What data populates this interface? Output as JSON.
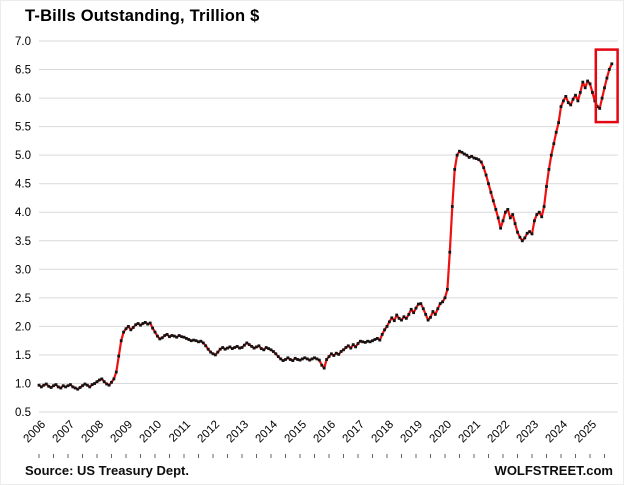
{
  "title": "T-Bills Outstanding, Trillion $",
  "footer": {
    "source": "Source: US Treasury Dept.",
    "brand": "WOLFSTREET.com"
  },
  "chart_data": {
    "type": "line",
    "title": "T-Bills Outstanding, Trillion $",
    "ylabel": "Trillion $",
    "xlabel": "",
    "ylim": [
      0.5,
      7.0
    ],
    "y_tick_step": 0.5,
    "y_tick_labels": [
      "0.5",
      "1.0",
      "1.5",
      "2.0",
      "2.5",
      "3.0",
      "3.5",
      "4.0",
      "4.5",
      "5.0",
      "5.5",
      "6.0",
      "6.5",
      "7.0"
    ],
    "x_tick_labels": [
      "2006",
      "2007",
      "2008",
      "2009",
      "2010",
      "2011",
      "2012",
      "2013",
      "2014",
      "2015",
      "2016",
      "2017",
      "2018",
      "2019",
      "2020",
      "2021",
      "2022",
      "2023",
      "2024",
      "2025"
    ],
    "grid": "horizontal",
    "legend": "none",
    "colors": {
      "line": "#ee1111",
      "marker": "#141414",
      "gridline": "#d9d9d9",
      "tick": "#666666",
      "annotation": "#e30613",
      "text": "#000000"
    },
    "annotation_box": {
      "x0_year": 2025.2,
      "x1_year": 2025.95,
      "y0_value": 5.58,
      "y1_value": 6.85
    },
    "series": [
      {
        "name": "T-Bills Outstanding (Trillion $)",
        "start_year": 2006,
        "points_per_year": 12,
        "values": [
          0.97,
          0.94,
          0.97,
          0.99,
          0.95,
          0.93,
          0.96,
          0.98,
          0.94,
          0.92,
          0.96,
          0.94,
          0.96,
          0.98,
          0.94,
          0.92,
          0.9,
          0.93,
          0.96,
          0.99,
          0.97,
          0.94,
          0.98,
          1.0,
          1.03,
          1.06,
          1.08,
          1.03,
          0.99,
          0.97,
          1.02,
          1.08,
          1.2,
          1.48,
          1.75,
          1.9,
          1.96,
          2.0,
          1.94,
          1.98,
          2.03,
          2.05,
          2.02,
          2.05,
          2.07,
          2.04,
          2.06,
          1.97,
          1.9,
          1.83,
          1.78,
          1.8,
          1.84,
          1.86,
          1.82,
          1.84,
          1.83,
          1.81,
          1.84,
          1.82,
          1.81,
          1.79,
          1.77,
          1.75,
          1.76,
          1.75,
          1.73,
          1.74,
          1.71,
          1.66,
          1.6,
          1.55,
          1.52,
          1.5,
          1.55,
          1.6,
          1.63,
          1.6,
          1.62,
          1.64,
          1.61,
          1.63,
          1.65,
          1.62,
          1.63,
          1.67,
          1.71,
          1.68,
          1.65,
          1.62,
          1.64,
          1.66,
          1.61,
          1.59,
          1.63,
          1.61,
          1.59,
          1.56,
          1.52,
          1.47,
          1.43,
          1.4,
          1.42,
          1.45,
          1.42,
          1.4,
          1.44,
          1.42,
          1.41,
          1.43,
          1.45,
          1.43,
          1.41,
          1.43,
          1.45,
          1.43,
          1.41,
          1.32,
          1.27,
          1.42,
          1.47,
          1.52,
          1.49,
          1.53,
          1.51,
          1.56,
          1.59,
          1.63,
          1.66,
          1.62,
          1.68,
          1.64,
          1.7,
          1.74,
          1.73,
          1.72,
          1.74,
          1.73,
          1.75,
          1.77,
          1.79,
          1.76,
          1.86,
          1.94,
          2.0,
          2.08,
          2.15,
          2.1,
          2.2,
          2.14,
          2.11,
          2.17,
          2.14,
          2.21,
          2.3,
          2.24,
          2.32,
          2.39,
          2.4,
          2.31,
          2.21,
          2.11,
          2.16,
          2.26,
          2.21,
          2.31,
          2.4,
          2.43,
          2.5,
          2.65,
          3.3,
          4.1,
          4.75,
          5.0,
          5.07,
          5.05,
          5.02,
          5.0,
          4.96,
          4.98,
          4.95,
          4.94,
          4.92,
          4.88,
          4.78,
          4.65,
          4.5,
          4.35,
          4.2,
          4.05,
          3.9,
          3.72,
          3.85,
          4.0,
          4.05,
          3.9,
          3.96,
          3.8,
          3.65,
          3.56,
          3.5,
          3.55,
          3.63,
          3.66,
          3.62,
          3.85,
          3.96,
          4.0,
          3.92,
          4.1,
          4.45,
          4.75,
          5.0,
          5.2,
          5.4,
          5.57,
          5.85,
          5.95,
          6.03,
          5.92,
          5.88,
          5.98,
          6.05,
          5.95,
          6.1,
          6.28,
          6.18,
          6.3,
          6.25,
          6.1,
          5.95,
          5.85,
          5.82,
          6.0,
          6.18,
          6.35,
          6.5,
          6.6
        ]
      }
    ]
  }
}
